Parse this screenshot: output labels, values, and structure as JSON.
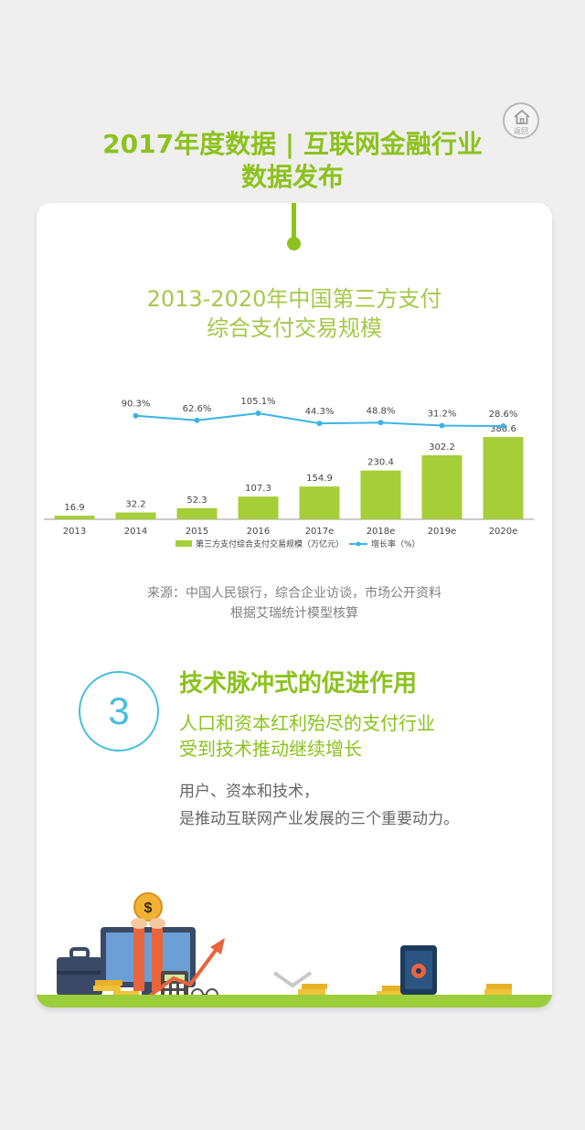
{
  "home": {
    "label": "返回",
    "icon": "home-icon"
  },
  "header": {
    "title_line1": "2017年度数据 | 互联网金融行业",
    "title_line2": "数据发布"
  },
  "chart_title": {
    "line1": "2013-2020年中国第三方支付",
    "line2": "综合支付交易规模"
  },
  "chart_data": {
    "type": "bar",
    "categories": [
      "2013",
      "2014",
      "2015",
      "2016",
      "2017e",
      "2018e",
      "2019e",
      "2020e"
    ],
    "series": [
      {
        "name": "第三方支付综合支付交易规模（万亿元）",
        "type": "bar",
        "values": [
          16.9,
          32.2,
          52.3,
          107.3,
          154.9,
          230.4,
          302.2,
          388.6
        ]
      },
      {
        "name": "增长率（%）",
        "type": "line",
        "values": [
          null,
          90.3,
          62.6,
          105.1,
          44.3,
          48.8,
          31.2,
          28.6
        ]
      }
    ],
    "value_labels": [
      "16.9",
      "32.2",
      "52.3",
      "107.3",
      "154.9",
      "230.4",
      "302.2",
      "388.6"
    ],
    "rate_labels": [
      "90.3%",
      "62.6%",
      "105.1%",
      "44.3%",
      "48.8%",
      "31.2%",
      "28.6%"
    ],
    "legend_position": "bottom",
    "colors": {
      "bar": "#a6ce39",
      "line": "#3cb4e5"
    }
  },
  "source": {
    "line1": "来源：中国人民银行，综合企业访谈，市场公开资料",
    "line2": "根据艾瑞统计模型核算"
  },
  "section": {
    "number": "3",
    "heading": "技术脉冲式的促进作用",
    "sub_line1": "人口和资本红利殆尽的支付行业",
    "sub_line2": "受到技术推动继续增长",
    "body_line1": "用户、资本和技术，",
    "body_line2": "是推动互联网产业发展的三个重要动力。"
  },
  "illustration": {
    "coin_symbol": "$",
    "icons": [
      "briefcase-icon",
      "monitor-icon",
      "coin-icon",
      "calculator-icon",
      "arrow-up-icon",
      "glasses-icon",
      "chevron-down-icon",
      "safe-icon"
    ]
  },
  "colors": {
    "accent": "#8cc21c",
    "circle": "#48bfdc"
  }
}
